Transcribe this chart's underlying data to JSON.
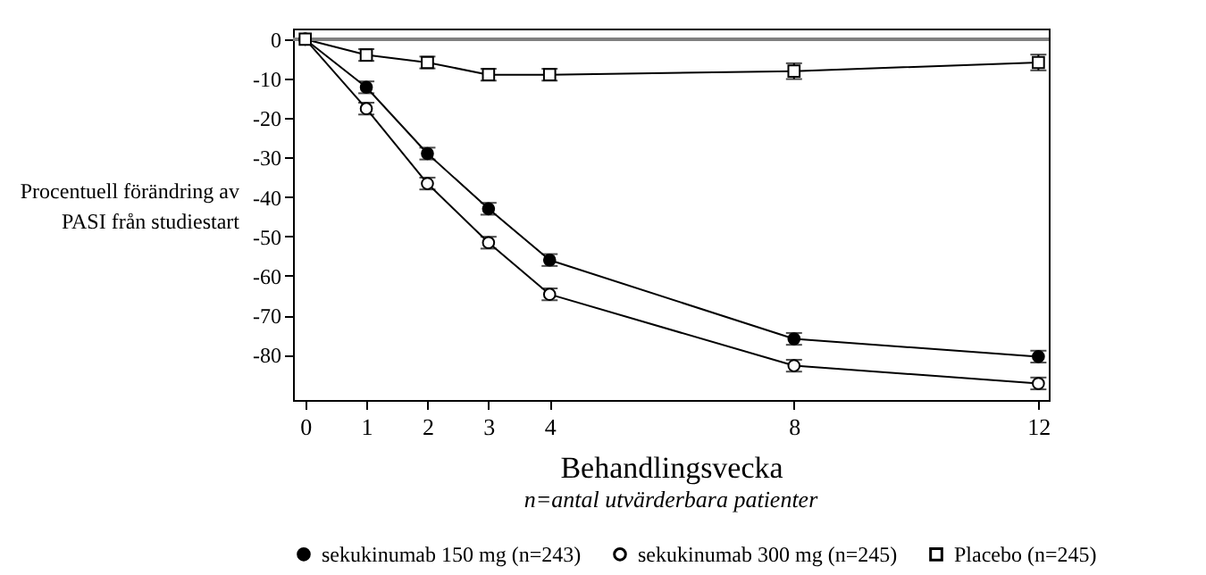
{
  "chart_data": {
    "type": "line",
    "xlabel": "Behandlingsvecka",
    "ylabel": "Procentuell förändring av\nPASI från studiestart",
    "annotations": [
      "n=antal utvärderbara patienter"
    ],
    "x": [
      0,
      1,
      2,
      3,
      4,
      8,
      12
    ],
    "series": [
      {
        "name": "sekukinumab 150 mg (n=243)",
        "color": "#000000",
        "marker": "circle",
        "values": [
          0,
          -12.2,
          -29,
          -43,
          -56,
          -76,
          -80.5
        ],
        "errors": [
          null,
          1.5,
          1.5,
          1.5,
          1.5,
          1.5,
          1.5
        ]
      },
      {
        "name": "sekukinumab 300 mg (n=245)",
        "color": "#000000",
        "marker": "circle-open",
        "values": [
          0,
          -17.6,
          -36.6,
          -51.6,
          -64.7,
          -82.8,
          -87.3
        ],
        "errors": [
          null,
          1.5,
          1.5,
          1.5,
          1.5,
          1.5,
          1.5
        ]
      },
      {
        "name": "Placebo (n=245)",
        "color": "#000000",
        "marker": "square-open",
        "values": [
          0,
          -4,
          -5.9,
          -9,
          -9,
          -8.1,
          -5.9
        ],
        "errors": [
          null,
          1.5,
          1.5,
          1.5,
          1.5,
          2,
          2
        ]
      }
    ],
    "xlim": [
      -0.2,
      12.17
    ],
    "xticks": [
      0,
      1,
      2,
      3,
      4,
      8,
      12
    ],
    "ylim": [
      -91.5,
      2.7
    ],
    "yticks": [
      0,
      -10,
      -20,
      -30,
      -40,
      -50,
      -60,
      -70,
      -80
    ],
    "ref_lines": [
      {
        "axis": "y",
        "value": 0,
        "color": "#808080"
      }
    ],
    "grid": false,
    "legend": "bottom",
    "line_style": "solid"
  }
}
